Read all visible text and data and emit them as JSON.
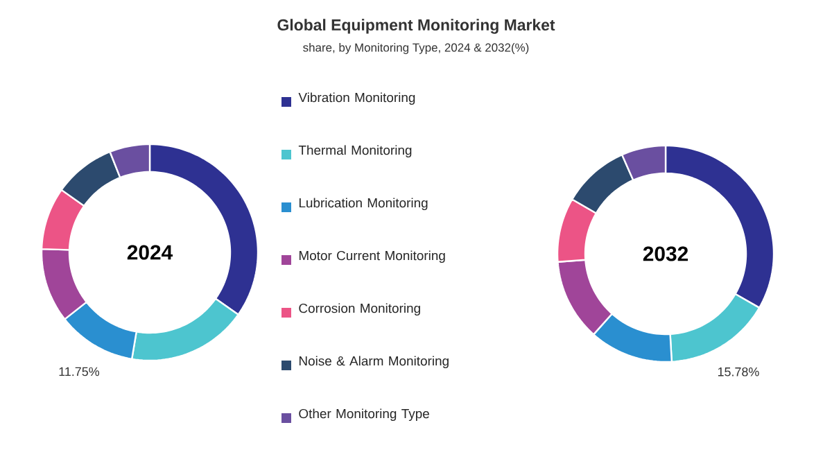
{
  "chart_data": {
    "type": "donut",
    "title": "Global Equipment Monitoring Market",
    "subtitle": "share, by Monitoring Type, 2024 & 2032(%)",
    "categories": [
      "Vibration Monitoring",
      "Thermal Monitoring",
      "Lubrication Monitoring",
      "Motor Current Monitoring",
      "Corrosion Monitoring",
      "Noise & Alarm Monitoring",
      "Other Monitoring Type"
    ],
    "colors": [
      "#2e3192",
      "#4dc5cf",
      "#2a8fd0",
      "#a04599",
      "#ec5486",
      "#2c4a6e",
      "#6a4fa0"
    ],
    "series": [
      {
        "name": "2024",
        "values": [
          34.75,
          17.9,
          11.75,
          11.1,
          9.3,
          9.2,
          6.0
        ],
        "value_labels": [
          null,
          null,
          "11.75%",
          null,
          null,
          null,
          null
        ]
      },
      {
        "name": "2032",
        "values": [
          33.32,
          15.78,
          12.5,
          12.2,
          9.6,
          10.0,
          6.6
        ],
        "value_labels": [
          null,
          "15.78%",
          null,
          null,
          null,
          null,
          null
        ]
      }
    ],
    "legend": "center"
  }
}
